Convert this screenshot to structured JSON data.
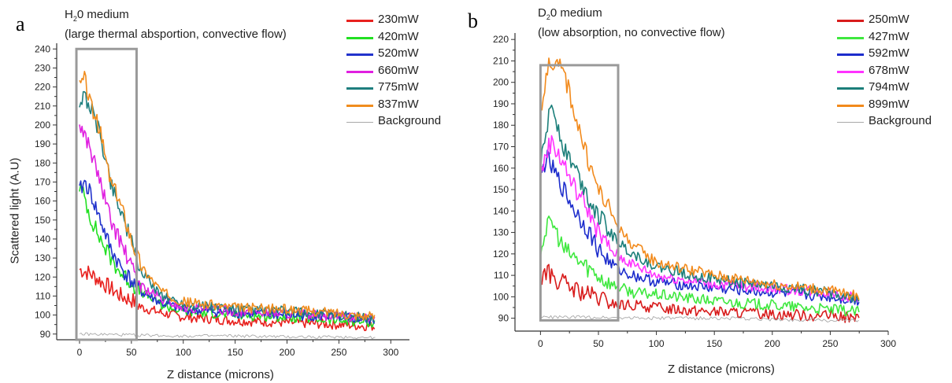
{
  "chart_data": [
    {
      "type": "line",
      "panel_label": "a",
      "title_lines": [
        "H",
        "0 medium",
        "(large thermal absportion, convective flow)"
      ],
      "title_sub": "2",
      "xlabel": "Z distance (microns)",
      "ylabel": "Scattered light (A.U)",
      "xlim": [
        -22,
        318
      ],
      "ylim": [
        87,
        243
      ],
      "xticks": [
        0,
        50,
        100,
        150,
        200,
        250,
        300
      ],
      "yticks": [
        90,
        100,
        110,
        120,
        130,
        140,
        150,
        160,
        170,
        180,
        190,
        200,
        210,
        220,
        230,
        240
      ],
      "highlight_box": {
        "x": [
          -3,
          55
        ],
        "y": [
          87,
          240
        ]
      },
      "series": [
        {
          "name": "230mW",
          "color": "#e8211e",
          "x": [
            0,
            10,
            20,
            30,
            40,
            50,
            60,
            80,
            100,
            150,
            200,
            250,
            285
          ],
          "y": [
            124,
            122,
            118,
            114,
            110,
            108,
            104,
            101,
            99,
            97,
            96,
            95,
            94
          ]
        },
        {
          "name": "420mW",
          "color": "#22e022",
          "x": [
            0,
            5,
            10,
            20,
            30,
            40,
            50,
            60,
            80,
            100,
            150,
            200,
            250,
            285
          ],
          "y": [
            168,
            162,
            152,
            140,
            130,
            122,
            117,
            112,
            105,
            102,
            100,
            99,
            97,
            96
          ]
        },
        {
          "name": "520mW",
          "color": "#2233cc",
          "x": [
            0,
            5,
            10,
            20,
            30,
            40,
            50,
            60,
            80,
            100,
            150,
            200,
            250,
            285
          ],
          "y": [
            165,
            170,
            165,
            150,
            135,
            125,
            118,
            112,
            106,
            103,
            101,
            100,
            99,
            97
          ]
        },
        {
          "name": "660mW",
          "color": "#e020e0",
          "x": [
            0,
            5,
            10,
            20,
            30,
            40,
            50,
            60,
            80,
            100,
            150,
            200,
            250,
            285
          ],
          "y": [
            200,
            195,
            188,
            170,
            150,
            138,
            125,
            115,
            108,
            104,
            102,
            101,
            99,
            98
          ]
        },
        {
          "name": "775mW",
          "color": "#1f7f7f",
          "x": [
            0,
            5,
            10,
            20,
            30,
            40,
            50,
            60,
            80,
            100,
            150,
            200,
            250,
            285
          ],
          "y": [
            212,
            215,
            210,
            195,
            170,
            155,
            138,
            122,
            110,
            106,
            103,
            102,
            100,
            98
          ]
        },
        {
          "name": "837mW",
          "color": "#f08c1e",
          "x": [
            0,
            5,
            10,
            20,
            30,
            40,
            50,
            60,
            80,
            100,
            150,
            200,
            250,
            285
          ],
          "y": [
            220,
            225,
            212,
            196,
            170,
            158,
            140,
            125,
            112,
            107,
            104,
            103,
            101,
            99
          ]
        },
        {
          "name": "Background",
          "color": "#a8a8a8",
          "x": [
            0,
            50,
            100,
            150,
            200,
            250,
            285
          ],
          "y": [
            90,
            89.5,
            89,
            89,
            88.5,
            88.5,
            88
          ]
        }
      ]
    },
    {
      "type": "line",
      "panel_label": "b",
      "title_lines": [
        "D",
        "0 medium",
        "(low absorption, no convective flow)"
      ],
      "title_sub": "2",
      "xlabel": "Z distance (microns)",
      "ylabel": "",
      "xlim": [
        -22,
        300
      ],
      "ylim": [
        84,
        223
      ],
      "xticks": [
        0,
        50,
        100,
        150,
        200,
        250,
        300
      ],
      "yticks": [
        90,
        100,
        110,
        120,
        130,
        140,
        150,
        160,
        170,
        180,
        190,
        200,
        210,
        220
      ],
      "highlight_box": {
        "x": [
          0,
          67
        ],
        "y": [
          89,
          208
        ]
      },
      "series": [
        {
          "name": "250mW",
          "color": "#d81c1c",
          "x": [
            0,
            5,
            10,
            20,
            30,
            40,
            50,
            60,
            70,
            80,
            100,
            150,
            200,
            250,
            275
          ],
          "y": [
            108,
            112,
            109,
            106,
            103,
            101,
            99,
            97,
            96,
            96,
            95,
            93,
            92,
            91,
            90
          ]
        },
        {
          "name": "427mW",
          "color": "#3ee83e",
          "x": [
            0,
            5,
            10,
            20,
            30,
            40,
            50,
            60,
            70,
            80,
            100,
            150,
            200,
            250,
            275
          ],
          "y": [
            122,
            132,
            135,
            122,
            118,
            114,
            110,
            106,
            104,
            102,
            101,
            98,
            96,
            94,
            93
          ]
        },
        {
          "name": "592mW",
          "color": "#1c2ccc",
          "x": [
            0,
            5,
            10,
            20,
            30,
            40,
            50,
            60,
            70,
            80,
            100,
            150,
            200,
            250,
            275
          ],
          "y": [
            155,
            165,
            160,
            150,
            140,
            132,
            122,
            116,
            112,
            110,
            107,
            104,
            102,
            100,
            98
          ]
        },
        {
          "name": "678mW",
          "color": "#ff33ff",
          "x": [
            0,
            5,
            10,
            20,
            30,
            40,
            50,
            60,
            70,
            80,
            100,
            150,
            200,
            250,
            275
          ],
          "y": [
            155,
            168,
            172,
            162,
            150,
            142,
            130,
            122,
            118,
            115,
            110,
            106,
            104,
            102,
            99
          ]
        },
        {
          "name": "794mW",
          "color": "#1c7f7a",
          "x": [
            0,
            5,
            10,
            20,
            30,
            40,
            50,
            60,
            70,
            80,
            100,
            150,
            200,
            250,
            275
          ],
          "y": [
            160,
            178,
            190,
            170,
            160,
            148,
            138,
            130,
            124,
            120,
            114,
            108,
            105,
            102,
            99
          ]
        },
        {
          "name": "899mW",
          "color": "#f28a1c",
          "x": [
            0,
            5,
            10,
            20,
            30,
            40,
            50,
            60,
            70,
            80,
            100,
            150,
            200,
            250,
            275
          ],
          "y": [
            185,
            205,
            210,
            205,
            185,
            165,
            150,
            140,
            130,
            124,
            116,
            110,
            106,
            103,
            100
          ]
        },
        {
          "name": "Background",
          "color": "#a8a8a8",
          "x": [
            0,
            50,
            100,
            150,
            200,
            250,
            275
          ],
          "y": [
            90.5,
            90.5,
            90,
            90,
            89.5,
            89,
            89
          ]
        }
      ]
    }
  ]
}
